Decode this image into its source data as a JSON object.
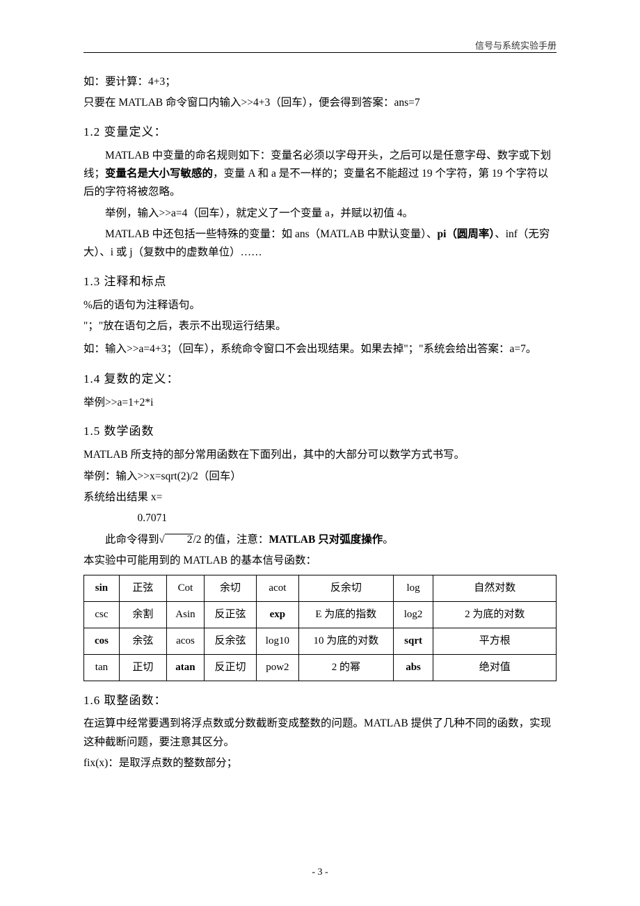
{
  "header": {
    "title": "信号与系统实验手册"
  },
  "footer": {
    "pageno": "- 3 -"
  },
  "body": {
    "intro1": "如：要计算：4+3；",
    "intro2": "只要在 MATLAB 命令窗口内输入>>4+3（回车），便会得到答案：ans=7",
    "s12_title_num": "1.2",
    "s12_title_txt": " 变量定义：",
    "s12_p1_a": "MATLAB 中变量的命名规则如下：变量名必须以字母开头，之后可以是任意字母、数字或下划线；",
    "s12_p1_b": "变量名是大小写敏感的",
    "s12_p1_c": "，变量 A 和 a 是不一样的；变量名不能超过 19 个字符，第 19 个字符以后的字符将被忽略。",
    "s12_p2": "举例，输入>>a=4（回车），就定义了一个变量 a，并赋以初值 4。",
    "s12_p3_a": "MATLAB 中还包括一些特殊的变量：如 ans（MATLAB 中默认变量）、",
    "s12_p3_b": "pi（圆周率）",
    "s12_p3_c": "、inf（无穷大）、i 或 j（复数中的虚数单位）……",
    "s13_title_num": "1.3",
    "s13_title_txt": " 注释和标点",
    "s13_p1": "%后的语句为注释语句。",
    "s13_p2": "\"；\"放在语句之后，表示不出现运行结果。",
    "s13_p3": "如：输入>>a=4+3；（回车），系统命令窗口不会出现结果。如果去掉\"；\"系统会给出答案：a=7。",
    "s14_title_num": "1.4",
    "s14_title_txt": " 复数的定义：",
    "s14_p1": "举例>>a=1+2*i",
    "s15_title_num": "1.5",
    "s15_title_txt": " 数学函数",
    "s15_p1": "MATLAB 所支持的部分常用函数在下面列出，其中的大部分可以数学方式书写。",
    "s15_p2": "举例：输入>>x=sqrt(2)/2（回车）",
    "s15_p3": "系统给出结果 x=",
    "s15_p3v": "0.7071",
    "s15_p4_a": "此命令得到",
    "s15_p4_root": "2",
    "s15_p4_b": "/2 的值，注意：",
    "s15_p4_c": "MATLAB 只对弧度操作",
    "s15_p4_d": "。",
    "s15_p5": "本实验中可能用到的 MATLAB 的基本信号函数：",
    "table": {
      "col_widths": [
        "7.5%",
        "10%",
        "8%",
        "11%",
        "9%",
        "20%",
        "8.5%",
        "26%"
      ],
      "rows": [
        [
          {
            "t": "sin",
            "bold": true
          },
          {
            "t": "正弦"
          },
          {
            "t": "Cot"
          },
          {
            "t": "余切"
          },
          {
            "t": "acot"
          },
          {
            "t": "反余切"
          },
          {
            "t": "log"
          },
          {
            "t": "自然对数"
          }
        ],
        [
          {
            "t": "csc"
          },
          {
            "t": "余割"
          },
          {
            "t": "Asin"
          },
          {
            "t": "反正弦"
          },
          {
            "t": "exp",
            "bold": true
          },
          {
            "t": "E 为底的指数"
          },
          {
            "t": "log2"
          },
          {
            "t": "2 为底的对数"
          }
        ],
        [
          {
            "t": "cos",
            "bold": true
          },
          {
            "t": "余弦"
          },
          {
            "t": "acos"
          },
          {
            "t": "反余弦"
          },
          {
            "t": "log10"
          },
          {
            "t": "10 为底的对数"
          },
          {
            "t": "sqrt",
            "bold": true
          },
          {
            "t": "平方根"
          }
        ],
        [
          {
            "t": "tan"
          },
          {
            "t": "正切"
          },
          {
            "t": "atan",
            "bold": true
          },
          {
            "t": "反正切"
          },
          {
            "t": "pow2"
          },
          {
            "t": "2 的幂"
          },
          {
            "t": "abs",
            "bold": true
          },
          {
            "t": "绝对值"
          }
        ]
      ]
    },
    "s16_title_num": "1.6",
    "s16_title_txt": " 取整函数：",
    "s16_p1": "在运算中经常要遇到将浮点数或分数截断变成整数的问题。MATLAB 提供了几种不同的函数，实现这种截断问题，要注意其区分。",
    "s16_p2": "fix(x)：是取浮点数的整数部分；"
  }
}
